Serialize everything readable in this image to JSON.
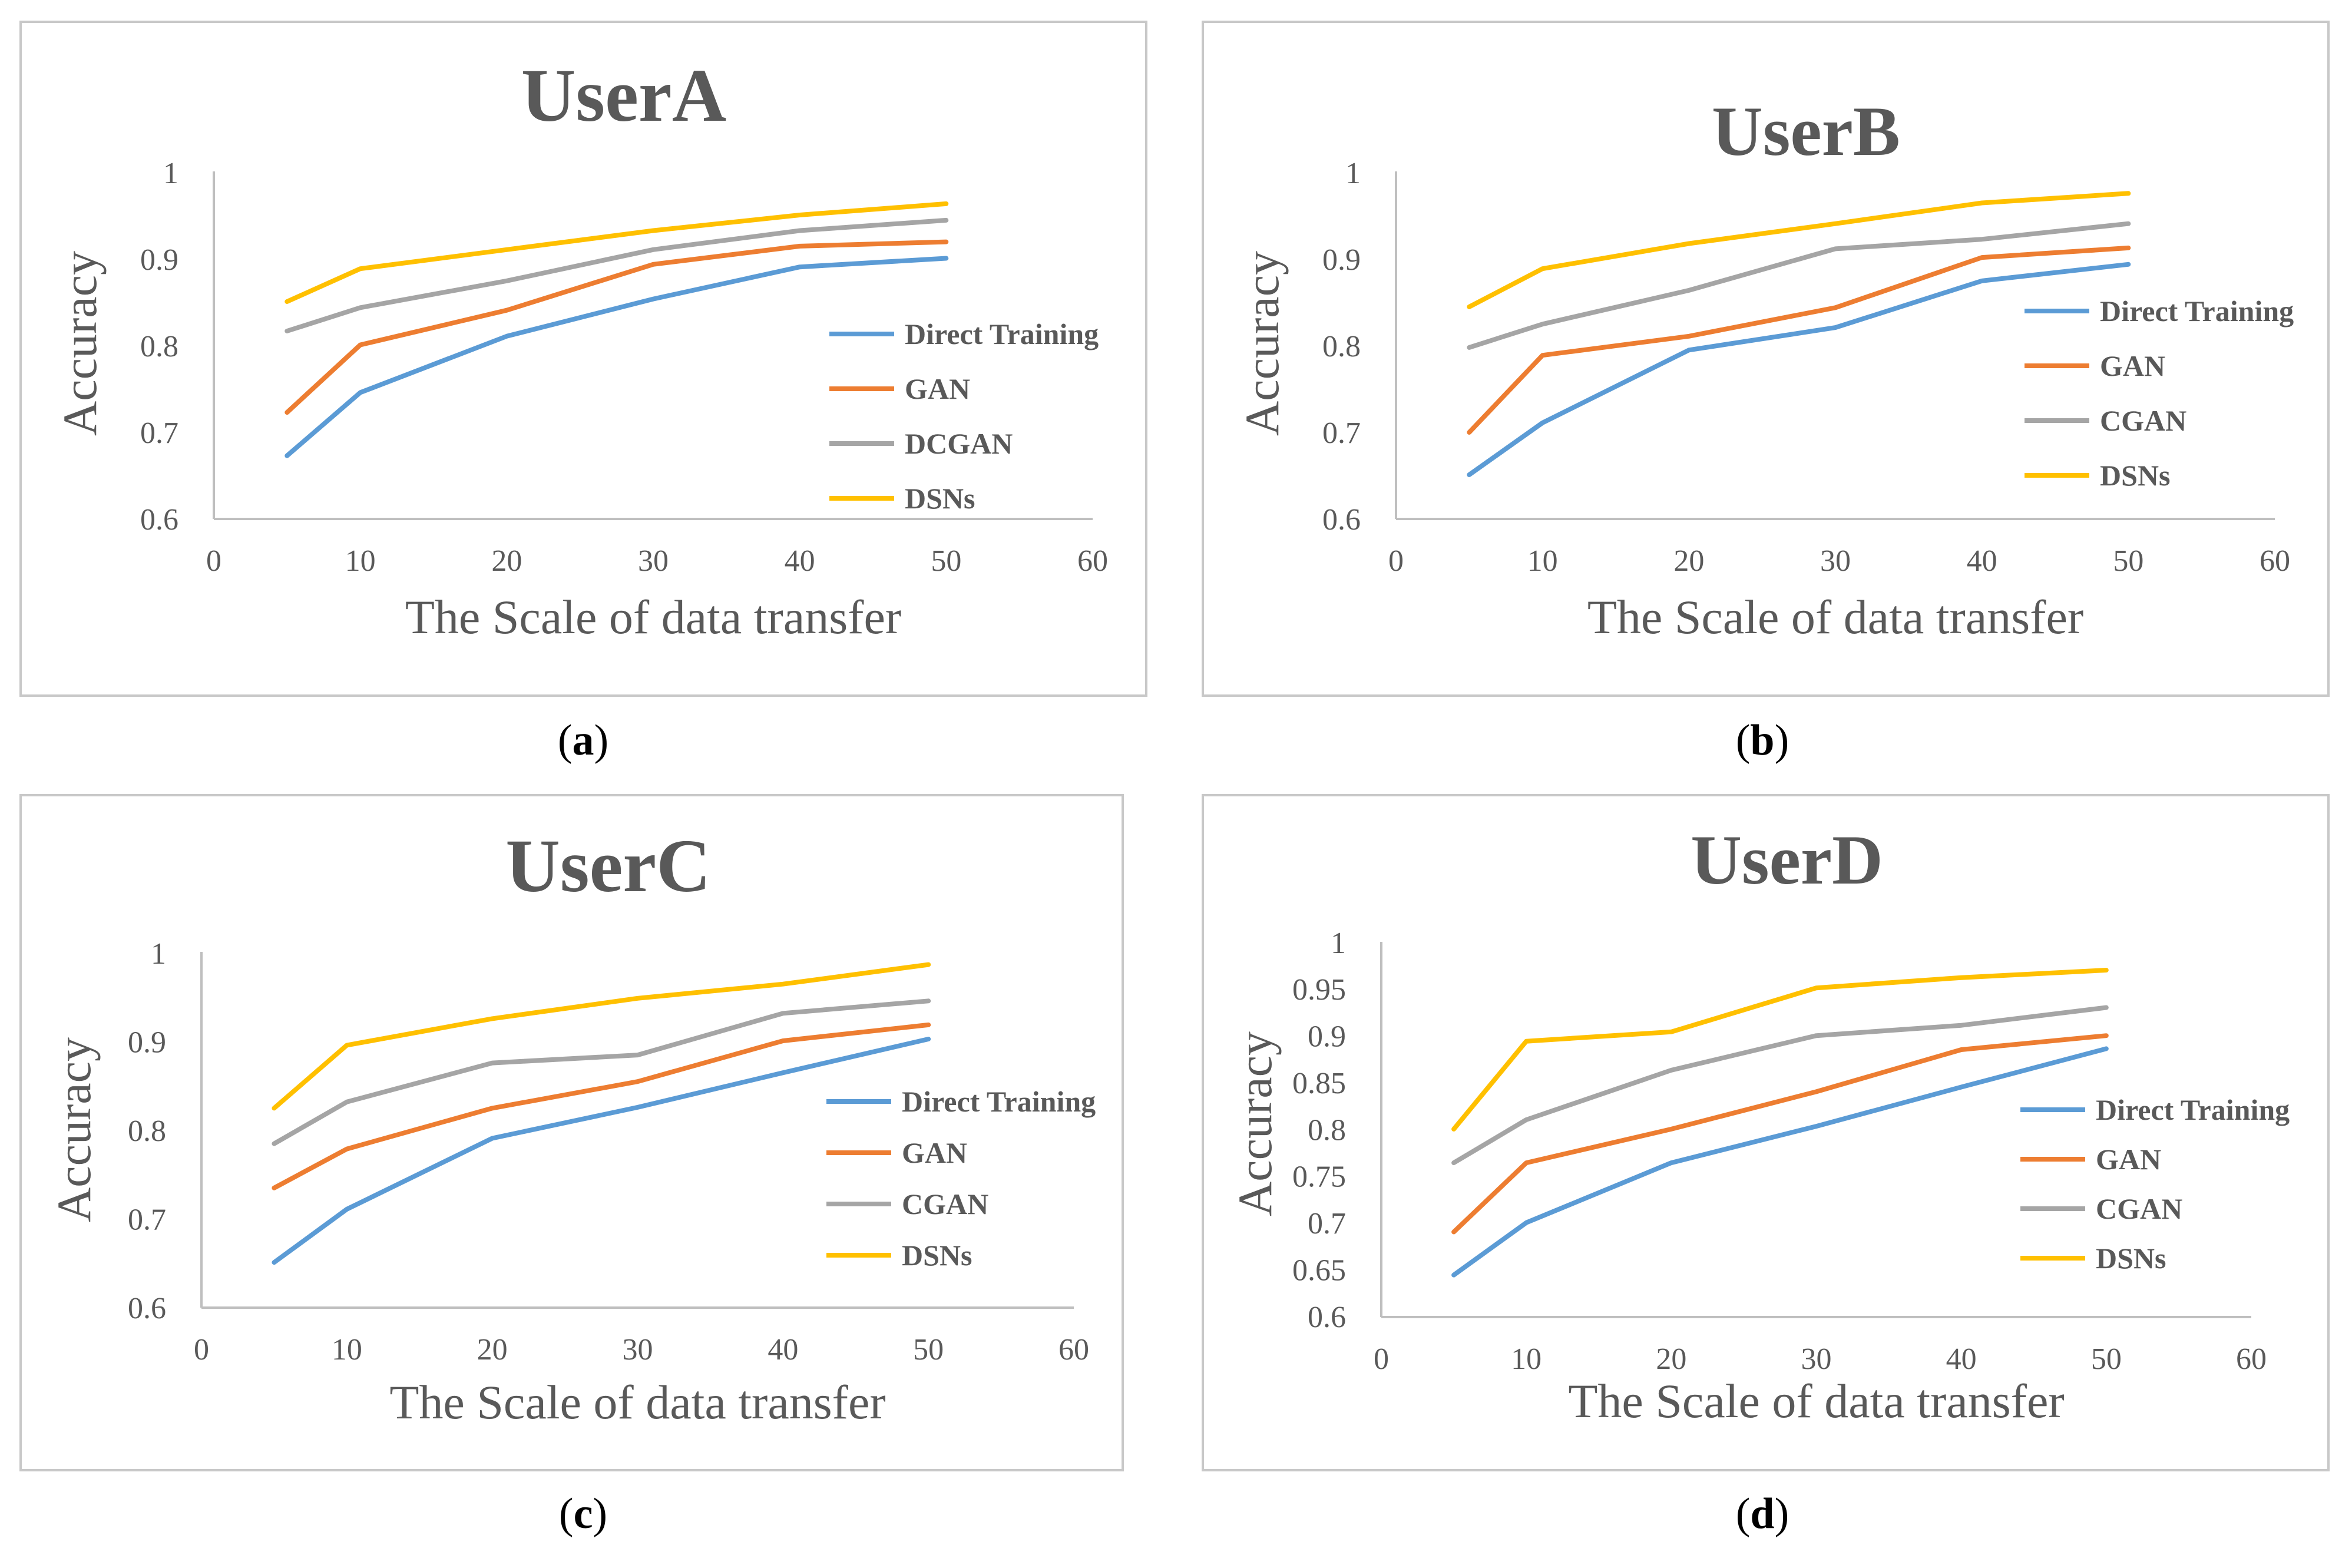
{
  "colors": {
    "direct": "#5b9bd5",
    "gan": "#ed7d31",
    "gray": "#a5a5a5",
    "dsns": "#ffc000"
  },
  "chart_data": [
    {
      "id": "a",
      "type": "line",
      "title": "UserA",
      "xlabel": "The Scale of data transfer",
      "ylabel": "Accuracy",
      "xlim": [
        0,
        60
      ],
      "ylim": [
        0.6,
        1
      ],
      "xticks": [
        0,
        10,
        20,
        30,
        40,
        50,
        60
      ],
      "yticks": [
        "0.6",
        "0.7",
        "0.8",
        "0.9",
        "1"
      ],
      "x": [
        5,
        10,
        20,
        30,
        40,
        50
      ],
      "series": [
        {
          "name": "Direct Training",
          "color": "#5b9bd5",
          "values": [
            0.673,
            0.746,
            0.811,
            0.854,
            0.891,
            0.901
          ]
        },
        {
          "name": "GAN",
          "color": "#ed7d31",
          "values": [
            0.723,
            0.801,
            0.841,
            0.894,
            0.915,
            0.92
          ]
        },
        {
          "name": "DCGAN",
          "color": "#a5a5a5",
          "values": [
            0.817,
            0.844,
            0.875,
            0.911,
            0.933,
            0.945
          ]
        },
        {
          "name": "DSNs",
          "color": "#ffc000",
          "values": [
            0.851,
            0.889,
            0.911,
            0.933,
            0.951,
            0.964
          ]
        }
      ],
      "caption": "a"
    },
    {
      "id": "b",
      "type": "line",
      "title": "UserB",
      "xlabel": "The Scale of data transfer",
      "ylabel": "Accuracy",
      "xlim": [
        0,
        60
      ],
      "ylim": [
        0.6,
        1
      ],
      "xticks": [
        0,
        10,
        20,
        30,
        40,
        50,
        60
      ],
      "yticks": [
        "0.6",
        "0.7",
        "0.8",
        "0.9",
        "1"
      ],
      "x": [
        5,
        10,
        20,
        30,
        40,
        50
      ],
      "series": [
        {
          "name": "Direct Training",
          "color": "#5b9bd5",
          "values": [
            0.651,
            0.711,
            0.795,
            0.821,
            0.875,
            0.894
          ]
        },
        {
          "name": "GAN",
          "color": "#ed7d31",
          "values": [
            0.7,
            0.789,
            0.811,
            0.844,
            0.902,
            0.913
          ]
        },
        {
          "name": "CGAN",
          "color": "#a5a5a5",
          "values": [
            0.798,
            0.825,
            0.864,
            0.912,
            0.923,
            0.941
          ]
        },
        {
          "name": "DSNs",
          "color": "#ffc000",
          "values": [
            0.845,
            0.889,
            0.918,
            0.941,
            0.965,
            0.976
          ]
        }
      ],
      "caption": "b"
    },
    {
      "id": "c",
      "type": "line",
      "title": "UserC",
      "xlabel": "The Scale of data transfer",
      "ylabel": "Accuracy",
      "xlim": [
        0,
        60
      ],
      "ylim": [
        0.6,
        1
      ],
      "xticks": [
        0,
        10,
        20,
        30,
        40,
        50,
        60
      ],
      "yticks": [
        "0.6",
        "0.7",
        "0.8",
        "0.9",
        "1"
      ],
      "x": [
        5,
        10,
        20,
        30,
        40,
        50
      ],
      "series": [
        {
          "name": "Direct Training",
          "color": "#5b9bd5",
          "values": [
            0.651,
            0.711,
            0.791,
            0.826,
            0.865,
            0.903
          ]
        },
        {
          "name": "GAN",
          "color": "#ed7d31",
          "values": [
            0.735,
            0.779,
            0.825,
            0.855,
            0.901,
            0.919
          ]
        },
        {
          "name": "CGAN",
          "color": "#a5a5a5",
          "values": [
            0.785,
            0.832,
            0.876,
            0.885,
            0.932,
            0.946
          ]
        },
        {
          "name": "DSNs",
          "color": "#ffc000",
          "values": [
            0.825,
            0.896,
            0.926,
            0.949,
            0.965,
            0.987
          ]
        }
      ],
      "caption": "c"
    },
    {
      "id": "d",
      "type": "line",
      "title": "UserD",
      "xlabel": "The Scale of data transfer",
      "ylabel": "Accuracy",
      "xlim": [
        0,
        60
      ],
      "ylim": [
        0.6,
        1
      ],
      "xticks": [
        0,
        10,
        20,
        30,
        40,
        50,
        60
      ],
      "yticks": [
        "0.6",
        "0.65",
        "0.7",
        "0.75",
        "0.8",
        "0.85",
        "0.9",
        "0.95",
        "1"
      ],
      "x": [
        5,
        10,
        20,
        30,
        40,
        50
      ],
      "series": [
        {
          "name": "Direct Training",
          "color": "#5b9bd5",
          "values": [
            0.645,
            0.701,
            0.765,
            0.804,
            0.846,
            0.887
          ]
        },
        {
          "name": "GAN",
          "color": "#ed7d31",
          "values": [
            0.691,
            0.765,
            0.801,
            0.841,
            0.886,
            0.901
          ]
        },
        {
          "name": "CGAN",
          "color": "#a5a5a5",
          "values": [
            0.765,
            0.811,
            0.864,
            0.901,
            0.912,
            0.931
          ]
        },
        {
          "name": "DSNs",
          "color": "#ffc000",
          "values": [
            0.801,
            0.895,
            0.905,
            0.952,
            0.963,
            0.971
          ]
        }
      ],
      "caption": "d"
    }
  ]
}
